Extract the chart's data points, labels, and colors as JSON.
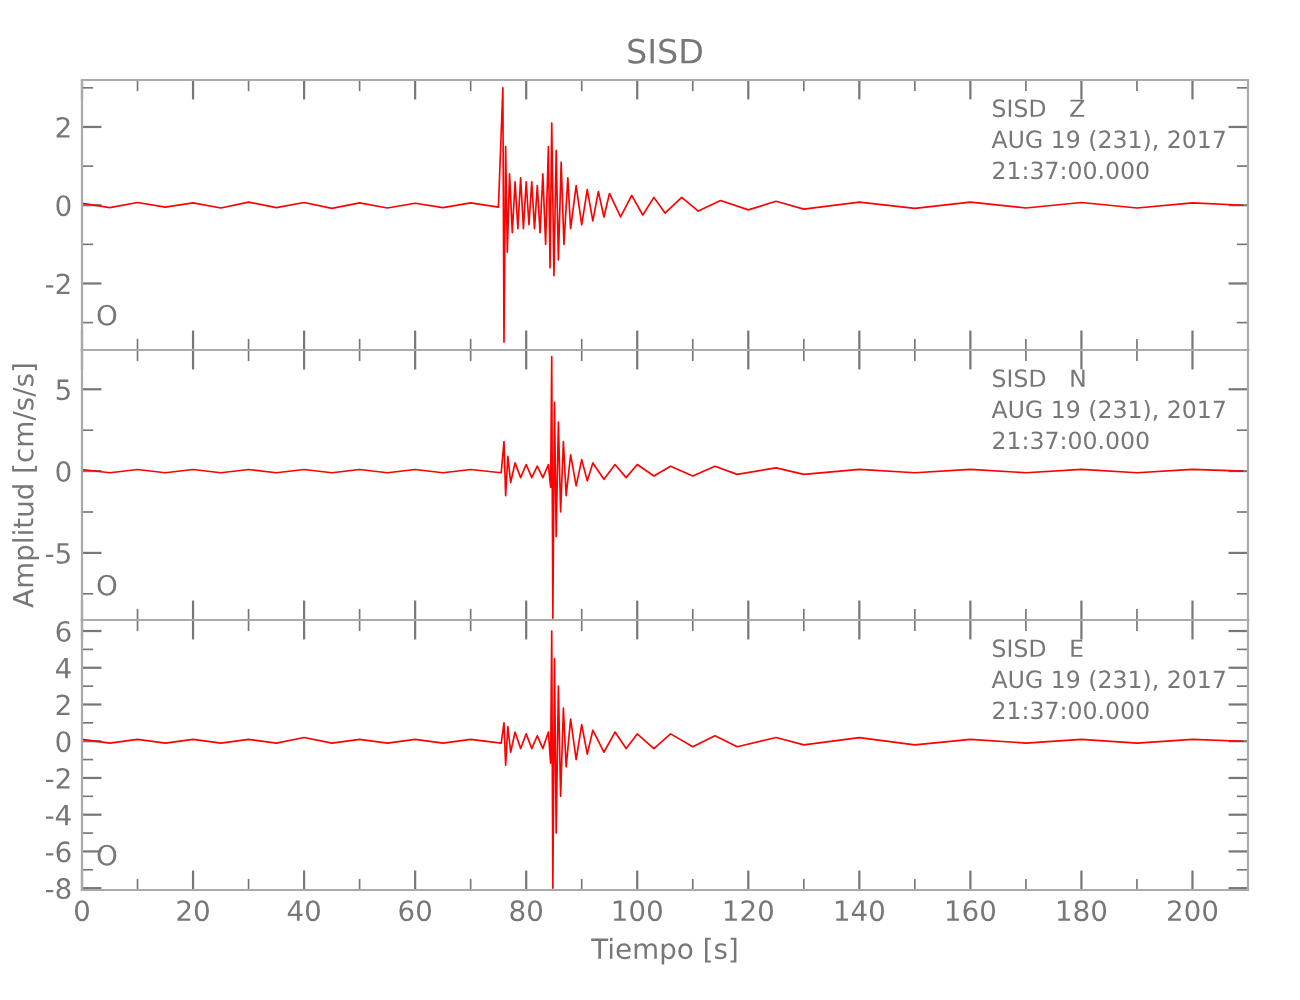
{
  "chart_data": [
    {
      "type": "line",
      "title": "SISD",
      "xlim": [
        0,
        210
      ],
      "xticks": [
        0,
        20,
        40,
        60,
        80,
        100,
        120,
        140,
        160,
        180,
        200
      ],
      "ylim": [
        -3.7,
        3.2
      ],
      "yticks": [
        -2,
        0,
        2
      ],
      "tick_labels": "y",
      "grid": false,
      "marker": "none",
      "line_style": "solid",
      "annotations": [
        "O",
        "SISD   Z",
        "AUG 19 (231), 2017",
        "21:37:00.000"
      ],
      "series": [
        {
          "color": "#ff0000",
          "x": [
            0,
            5,
            10,
            15,
            20,
            25,
            30,
            35,
            40,
            45,
            50,
            55,
            60,
            65,
            70,
            75,
            75.8,
            76.0,
            76.3,
            76.6,
            77,
            77.5,
            78,
            78.5,
            79,
            79.5,
            80,
            80.5,
            81,
            81.5,
            82,
            82.5,
            83,
            83.5,
            84,
            84.3,
            84.6,
            85,
            85.4,
            85.8,
            86.3,
            86.8,
            87.5,
            88,
            89,
            90,
            91,
            92,
            93,
            94,
            95,
            97,
            99,
            101,
            103,
            105,
            108,
            111,
            115,
            120,
            125,
            130,
            140,
            150,
            160,
            170,
            180,
            190,
            200,
            209
          ],
          "values": [
            0.05,
            -0.06,
            0.07,
            -0.05,
            0.06,
            -0.07,
            0.08,
            -0.06,
            0.07,
            -0.08,
            0.06,
            -0.07,
            0.05,
            -0.06,
            0.06,
            -0.05,
            3.0,
            -3.5,
            1.5,
            -1.2,
            0.8,
            -0.7,
            0.6,
            -0.6,
            0.7,
            -0.6,
            0.6,
            -0.5,
            0.6,
            -0.6,
            0.5,
            -0.7,
            0.8,
            -1.0,
            1.5,
            -1.6,
            2.1,
            -1.8,
            1.4,
            -1.4,
            1.1,
            -1.0,
            0.7,
            -0.6,
            0.5,
            -0.5,
            0.4,
            -0.4,
            0.35,
            -0.3,
            0.3,
            -0.3,
            0.25,
            -0.25,
            0.2,
            -0.2,
            0.2,
            -0.15,
            0.12,
            -0.12,
            0.1,
            -0.1,
            0.08,
            -0.08,
            0.08,
            -0.07,
            0.07,
            -0.07,
            0.06,
            0.0
          ]
        }
      ]
    },
    {
      "type": "line",
      "ylabel": "Amplitud [cm/s/s]",
      "xlim": [
        0,
        210
      ],
      "xticks": [
        0,
        20,
        40,
        60,
        80,
        100,
        120,
        140,
        160,
        180,
        200
      ],
      "ylim": [
        -9.1,
        7.4
      ],
      "yticks": [
        -5,
        0,
        5
      ],
      "tick_labels": "y",
      "grid": false,
      "marker": "none",
      "line_style": "solid",
      "annotations": [
        "O",
        "SISD   N",
        "AUG 19 (231), 2017",
        "21:37:00.000"
      ],
      "series": [
        {
          "color": "#ff0000",
          "x": [
            0,
            5,
            10,
            15,
            20,
            25,
            30,
            35,
            40,
            45,
            50,
            55,
            60,
            65,
            70,
            75.5,
            76,
            76.3,
            76.7,
            77.2,
            78,
            79,
            80,
            81,
            82,
            83,
            84,
            84.4,
            84.6,
            84.8,
            85.1,
            85.4,
            85.8,
            86.2,
            86.7,
            87.2,
            88,
            89,
            90,
            91,
            92,
            94,
            96,
            98,
            100,
            103,
            106,
            110,
            114,
            118,
            125,
            130,
            140,
            150,
            160,
            170,
            180,
            190,
            200,
            209
          ],
          "values": [
            0.1,
            -0.1,
            0.1,
            -0.1,
            0.1,
            -0.1,
            0.1,
            -0.1,
            0.1,
            -0.1,
            0.1,
            -0.1,
            0.1,
            -0.1,
            0.1,
            -0.1,
            1.8,
            -1.5,
            0.9,
            -0.7,
            0.5,
            -0.4,
            0.4,
            -0.4,
            0.3,
            -0.4,
            0.4,
            -1.0,
            7.0,
            -9.0,
            4.2,
            -4.0,
            3.0,
            -2.5,
            1.8,
            -1.5,
            1.0,
            -0.9,
            0.7,
            -0.6,
            0.5,
            -0.5,
            0.4,
            -0.4,
            0.4,
            -0.3,
            0.3,
            -0.3,
            0.3,
            -0.2,
            0.2,
            -0.2,
            0.1,
            -0.1,
            0.1,
            -0.1,
            0.1,
            -0.1,
            0.1,
            0.0
          ]
        }
      ]
    },
    {
      "type": "line",
      "xlabel": "Tiempo [s]",
      "xlim": [
        0,
        210
      ],
      "xticks": [
        0,
        20,
        40,
        60,
        80,
        100,
        120,
        140,
        160,
        180,
        200
      ],
      "ylim": [
        -8.1,
        6.6
      ],
      "yticks": [
        -8,
        -6,
        -4,
        -2,
        0,
        2,
        4,
        6
      ],
      "grid": false,
      "marker": "none",
      "line_style": "solid",
      "annotations": [
        "O",
        "SISD   E",
        "AUG 19 (231), 2017",
        "21:37:00.000"
      ],
      "series": [
        {
          "color": "#ff0000",
          "x": [
            0,
            5,
            10,
            15,
            20,
            25,
            30,
            35,
            40,
            45,
            50,
            55,
            60,
            65,
            70,
            75.5,
            76,
            76.3,
            76.7,
            77.2,
            78,
            79,
            80,
            81,
            82,
            83,
            84,
            84.4,
            84.6,
            84.8,
            85.1,
            85.4,
            85.8,
            86.2,
            86.7,
            87.2,
            88,
            89,
            90,
            91,
            92,
            94,
            96,
            98,
            100,
            103,
            106,
            110,
            114,
            118,
            125,
            130,
            140,
            150,
            160,
            170,
            180,
            190,
            200,
            209
          ],
          "values": [
            0.1,
            -0.1,
            0.1,
            -0.1,
            0.1,
            -0.1,
            0.1,
            -0.1,
            0.2,
            -0.1,
            0.1,
            -0.1,
            0.1,
            -0.1,
            0.1,
            -0.1,
            1.0,
            -1.3,
            0.8,
            -0.6,
            0.5,
            -0.4,
            0.4,
            -0.4,
            0.3,
            -0.4,
            0.5,
            -1.2,
            6.0,
            -8.0,
            4.5,
            -5.0,
            3.0,
            -3.0,
            1.8,
            -1.4,
            1.2,
            -1.0,
            0.9,
            -0.7,
            0.6,
            -0.6,
            0.5,
            -0.4,
            0.4,
            -0.4,
            0.4,
            -0.3,
            0.3,
            -0.3,
            0.2,
            -0.2,
            0.2,
            -0.2,
            0.1,
            -0.1,
            0.1,
            -0.1,
            0.1,
            0.0
          ]
        }
      ]
    }
  ]
}
